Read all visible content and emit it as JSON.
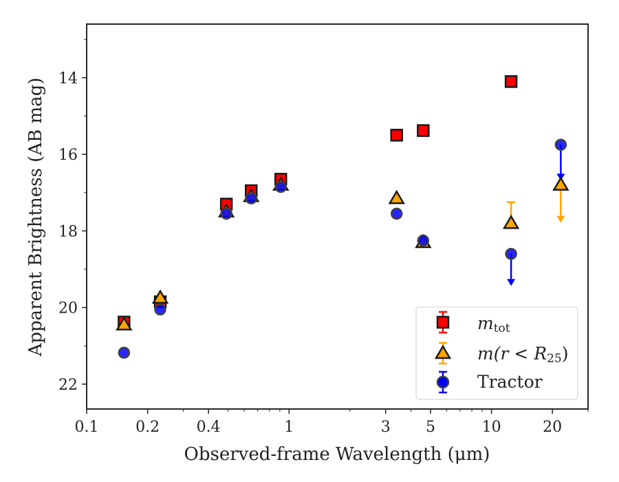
{
  "chart_data": {
    "type": "scatter",
    "xlabel": "Observed-frame Wavelength (μm)",
    "ylabel": "Apparent Brightness (AB mag)",
    "xscale": "log",
    "yaxis_inverted": true,
    "xlim": [
      0.1,
      30
    ],
    "ylim": [
      22.65,
      12.6
    ],
    "xticks": [
      0.1,
      0.2,
      0.4,
      1,
      3,
      5,
      10,
      20
    ],
    "xtick_labels": [
      "0.1",
      "0.2",
      "0.4",
      "1",
      "3",
      "5",
      "10",
      "20"
    ],
    "yticks": [
      14,
      16,
      18,
      20,
      22
    ],
    "ytick_labels": [
      "14",
      "16",
      "18",
      "20",
      "22"
    ],
    "grid": false,
    "legend_position": "lower-right",
    "series": [
      {
        "name": "m_tot",
        "legend_label": "m",
        "legend_subscript": "tot",
        "marker": "square",
        "color": "#ff0000",
        "edge_color": "#1a1a1a",
        "errorbar_color": "#ff0000",
        "x": [
          0.153,
          0.231,
          0.49,
          0.65,
          0.91,
          3.4,
          4.6,
          12.5
        ],
        "y": [
          20.38,
          19.85,
          17.3,
          16.95,
          16.65,
          15.5,
          15.38,
          14.1
        ]
      },
      {
        "name": "m(r < R25)",
        "legend_label": "m(r < R",
        "legend_subscript": "25",
        "legend_suffix": ")",
        "marker": "triangle",
        "color": "#ffa500",
        "edge_color": "#1a1a1a",
        "errorbar_color": "#ffa500",
        "x": [
          0.153,
          0.231,
          0.49,
          0.65,
          0.91,
          3.4,
          4.6,
          12.5,
          22.0
        ],
        "y": [
          20.45,
          19.75,
          17.5,
          17.1,
          16.8,
          17.15,
          18.3,
          17.8,
          16.8
        ],
        "upper_limits": [
          false,
          false,
          false,
          false,
          false,
          false,
          false,
          true,
          true
        ],
        "err_top": [
          null,
          null,
          null,
          null,
          null,
          null,
          null,
          17.25,
          null
        ],
        "arrow_to": [
          null,
          null,
          null,
          null,
          null,
          null,
          null,
          null,
          17.75
        ]
      },
      {
        "name": "Tractor",
        "legend_label": "Tractor",
        "marker": "circle",
        "color": "#0000ff",
        "edge_color": "#404040",
        "errorbar_color": "#0000ff",
        "x": [
          0.153,
          0.231,
          0.49,
          0.65,
          0.91,
          3.4,
          4.6,
          12.5,
          22.0
        ],
        "y": [
          21.18,
          20.05,
          17.55,
          17.15,
          16.85,
          17.55,
          18.25,
          18.6,
          15.75
        ],
        "upper_limits": [
          false,
          false,
          false,
          false,
          false,
          false,
          false,
          true,
          true
        ],
        "arrow_to": [
          null,
          null,
          null,
          null,
          null,
          null,
          null,
          19.4,
          16.65
        ]
      }
    ]
  }
}
